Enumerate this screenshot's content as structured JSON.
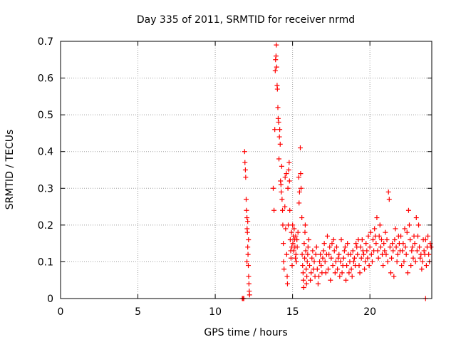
{
  "chart_data": {
    "type": "scatter",
    "title": "Day 335 of 2011, SRMTID for receiver nrmd",
    "xlabel": "GPS time / hours",
    "ylabel": "SRMTID / TECUs",
    "xlim": [
      0,
      24
    ],
    "ylim": [
      0,
      0.7
    ],
    "xticks": [
      "0",
      "5",
      "10",
      "15",
      "20"
    ],
    "yticks": [
      "0",
      "0.1",
      "0.2",
      "0.3",
      "0.4",
      "0.5",
      "0.6",
      "0.7"
    ],
    "grid": true,
    "marker": "plus",
    "series": [
      {
        "color": "#ff0000",
        "points": [
          [
            11.75,
            0.0
          ],
          [
            11.8,
            0.0
          ],
          [
            11.85,
            0.0
          ],
          [
            11.9,
            0.4
          ],
          [
            11.92,
            0.37
          ],
          [
            11.95,
            0.35
          ],
          [
            11.97,
            0.33
          ],
          [
            12.0,
            0.27
          ],
          [
            12.02,
            0.24
          ],
          [
            12.05,
            0.22
          ],
          [
            12.06,
            0.19
          ],
          [
            12.08,
            0.18
          ],
          [
            12.1,
            0.14
          ],
          [
            12.12,
            0.12
          ],
          [
            12.14,
            0.09
          ],
          [
            12.16,
            0.06
          ],
          [
            12.18,
            0.04
          ],
          [
            12.2,
            0.02
          ],
          [
            12.22,
            0.01
          ],
          [
            12.1,
            0.21
          ],
          [
            12.15,
            0.16
          ],
          [
            12.05,
            0.1
          ],
          [
            13.75,
            0.3
          ],
          [
            13.8,
            0.24
          ],
          [
            13.85,
            0.46
          ],
          [
            13.88,
            0.62
          ],
          [
            13.9,
            0.65
          ],
          [
            13.93,
            0.66
          ],
          [
            13.95,
            0.69
          ],
          [
            13.97,
            0.63
          ],
          [
            14.0,
            0.58
          ],
          [
            14.02,
            0.57
          ],
          [
            14.05,
            0.52
          ],
          [
            14.07,
            0.49
          ],
          [
            14.1,
            0.48
          ],
          [
            14.12,
            0.38
          ],
          [
            14.15,
            0.44
          ],
          [
            14.17,
            0.46
          ],
          [
            14.2,
            0.42
          ],
          [
            14.22,
            0.32
          ],
          [
            14.25,
            0.31
          ],
          [
            14.27,
            0.29
          ],
          [
            14.3,
            0.36
          ],
          [
            14.32,
            0.27
          ],
          [
            14.35,
            0.24
          ],
          [
            14.37,
            0.2
          ],
          [
            14.4,
            0.15
          ],
          [
            14.42,
            0.1
          ],
          [
            14.45,
            0.08
          ],
          [
            14.5,
            0.25
          ],
          [
            14.52,
            0.33
          ],
          [
            14.55,
            0.19
          ],
          [
            14.6,
            0.34
          ],
          [
            14.62,
            0.12
          ],
          [
            14.65,
            0.06
          ],
          [
            14.67,
            0.04
          ],
          [
            14.7,
            0.3
          ],
          [
            14.72,
            0.2
          ],
          [
            14.75,
            0.35
          ],
          [
            14.78,
            0.37
          ],
          [
            14.8,
            0.32
          ],
          [
            14.82,
            0.24
          ],
          [
            14.85,
            0.16
          ],
          [
            14.88,
            0.13
          ],
          [
            14.9,
            0.11
          ],
          [
            14.93,
            0.18
          ],
          [
            14.95,
            0.14
          ],
          [
            14.97,
            0.09
          ],
          [
            15.0,
            0.2
          ],
          [
            15.02,
            0.15
          ],
          [
            15.05,
            0.17
          ],
          [
            15.08,
            0.13
          ],
          [
            15.1,
            0.19
          ],
          [
            15.12,
            0.16
          ],
          [
            15.15,
            0.14
          ],
          [
            15.18,
            0.11
          ],
          [
            15.2,
            0.17
          ],
          [
            15.22,
            0.12
          ],
          [
            15.25,
            0.1
          ],
          [
            15.28,
            0.16
          ],
          [
            15.3,
            0.14
          ],
          [
            15.35,
            0.18
          ],
          [
            15.4,
            0.33
          ],
          [
            15.42,
            0.26
          ],
          [
            15.45,
            0.29
          ],
          [
            15.5,
            0.41
          ],
          [
            15.52,
            0.34
          ],
          [
            15.55,
            0.3
          ],
          [
            15.6,
            0.22
          ],
          [
            15.62,
            0.12
          ],
          [
            15.65,
            0.09
          ],
          [
            15.68,
            0.07
          ],
          [
            15.7,
            0.05
          ],
          [
            15.72,
            0.03
          ],
          [
            15.75,
            0.15
          ],
          [
            15.78,
            0.11
          ],
          [
            15.8,
            0.18
          ],
          [
            15.82,
            0.2
          ],
          [
            15.85,
            0.13
          ],
          [
            15.88,
            0.08
          ],
          [
            15.9,
            0.04
          ],
          [
            15.92,
            0.06
          ],
          [
            15.95,
            0.1
          ],
          [
            15.98,
            0.12
          ],
          [
            16.0,
            0.14
          ],
          [
            16.05,
            0.16
          ],
          [
            16.1,
            0.09
          ],
          [
            16.15,
            0.05
          ],
          [
            16.2,
            0.07
          ],
          [
            16.25,
            0.11
          ],
          [
            16.3,
            0.13
          ],
          [
            16.35,
            0.08
          ],
          [
            16.4,
            0.1
          ],
          [
            16.45,
            0.06
          ],
          [
            16.5,
            0.12
          ],
          [
            16.55,
            0.14
          ],
          [
            16.6,
            0.08
          ],
          [
            16.65,
            0.04
          ],
          [
            16.7,
            0.06
          ],
          [
            16.75,
            0.1
          ],
          [
            16.8,
            0.12
          ],
          [
            16.85,
            0.09
          ],
          [
            16.9,
            0.07
          ],
          [
            16.95,
            0.11
          ],
          [
            17.0,
            0.13
          ],
          [
            17.1,
            0.1
          ],
          [
            17.2,
            0.12
          ],
          [
            17.3,
            0.08
          ],
          [
            17.4,
            0.14
          ],
          [
            17.5,
            0.11
          ],
          [
            17.6,
            0.09
          ],
          [
            17.7,
            0.13
          ],
          [
            17.8,
            0.1
          ],
          [
            17.9,
            0.08
          ],
          [
            18.0,
            0.12
          ],
          [
            18.1,
            0.1
          ],
          [
            18.2,
            0.07
          ],
          [
            18.3,
            0.11
          ],
          [
            18.4,
            0.14
          ],
          [
            18.5,
            0.09
          ],
          [
            18.6,
            0.12
          ],
          [
            18.7,
            0.1
          ],
          [
            18.8,
            0.08
          ],
          [
            18.9,
            0.13
          ],
          [
            19.0,
            0.11
          ],
          [
            19.1,
            0.15
          ],
          [
            19.2,
            0.12
          ],
          [
            19.3,
            0.09
          ],
          [
            19.4,
            0.14
          ],
          [
            19.5,
            0.16
          ],
          [
            19.6,
            0.12
          ],
          [
            19.7,
            0.1
          ],
          [
            19.8,
            0.13
          ],
          [
            19.9,
            0.17
          ],
          [
            20.0,
            0.14
          ],
          [
            20.1,
            0.12
          ],
          [
            20.2,
            0.16
          ],
          [
            20.3,
            0.19
          ],
          [
            20.4,
            0.15
          ],
          [
            20.5,
            0.13
          ],
          [
            20.6,
            0.17
          ],
          [
            20.7,
            0.14
          ],
          [
            20.8,
            0.12
          ],
          [
            20.9,
            0.15
          ],
          [
            21.0,
            0.18
          ],
          [
            21.1,
            0.16
          ],
          [
            21.2,
            0.29
          ],
          [
            21.25,
            0.27
          ],
          [
            21.3,
            0.14
          ],
          [
            21.4,
            0.11
          ],
          [
            21.5,
            0.13
          ],
          [
            21.6,
            0.16
          ],
          [
            21.7,
            0.14
          ],
          [
            21.8,
            0.12
          ],
          [
            21.9,
            0.15
          ],
          [
            22.0,
            0.17
          ],
          [
            22.1,
            0.13
          ],
          [
            22.2,
            0.1
          ],
          [
            22.3,
            0.14
          ],
          [
            22.4,
            0.18
          ],
          [
            22.5,
            0.24
          ],
          [
            22.6,
            0.16
          ],
          [
            22.7,
            0.13
          ],
          [
            22.8,
            0.11
          ],
          [
            22.9,
            0.15
          ],
          [
            23.0,
            0.22
          ],
          [
            23.1,
            0.17
          ],
          [
            23.2,
            0.14
          ],
          [
            23.3,
            0.12
          ],
          [
            23.4,
            0.1
          ],
          [
            23.5,
            0.13
          ],
          [
            23.6,
            0.16
          ],
          [
            23.7,
            0.14
          ],
          [
            23.8,
            0.12
          ],
          [
            23.9,
            0.15
          ],
          [
            23.6,
            0.0
          ],
          [
            17.05,
            0.15
          ],
          [
            17.15,
            0.07
          ],
          [
            17.25,
            0.17
          ],
          [
            17.35,
            0.12
          ],
          [
            17.45,
            0.05
          ],
          [
            17.55,
            0.15
          ],
          [
            17.65,
            0.16
          ],
          [
            17.75,
            0.07
          ],
          [
            17.85,
            0.14
          ],
          [
            17.95,
            0.11
          ],
          [
            18.05,
            0.06
          ],
          [
            18.15,
            0.16
          ],
          [
            18.25,
            0.09
          ],
          [
            18.35,
            0.13
          ],
          [
            18.45,
            0.05
          ],
          [
            18.55,
            0.15
          ],
          [
            18.65,
            0.07
          ],
          [
            18.75,
            0.12
          ],
          [
            18.85,
            0.06
          ],
          [
            18.95,
            0.1
          ],
          [
            19.05,
            0.09
          ],
          [
            19.15,
            0.14
          ],
          [
            19.25,
            0.16
          ],
          [
            19.35,
            0.07
          ],
          [
            19.45,
            0.11
          ],
          [
            19.55,
            0.13
          ],
          [
            19.65,
            0.08
          ],
          [
            19.75,
            0.15
          ],
          [
            19.85,
            0.11
          ],
          [
            19.95,
            0.09
          ],
          [
            20.05,
            0.18
          ],
          [
            20.15,
            0.1
          ],
          [
            20.25,
            0.13
          ],
          [
            20.35,
            0.17
          ],
          [
            20.45,
            0.22
          ],
          [
            20.55,
            0.11
          ],
          [
            20.65,
            0.2
          ],
          [
            20.75,
            0.16
          ],
          [
            20.85,
            0.09
          ],
          [
            20.95,
            0.13
          ],
          [
            21.05,
            0.12
          ],
          [
            21.15,
            0.1
          ],
          [
            21.35,
            0.07
          ],
          [
            21.45,
            0.15
          ],
          [
            21.55,
            0.06
          ],
          [
            21.65,
            0.19
          ],
          [
            21.75,
            0.1
          ],
          [
            21.85,
            0.17
          ],
          [
            21.95,
            0.13
          ],
          [
            22.05,
            0.09
          ],
          [
            22.15,
            0.15
          ],
          [
            22.25,
            0.19
          ],
          [
            22.35,
            0.12
          ],
          [
            22.45,
            0.07
          ],
          [
            22.55,
            0.2
          ],
          [
            22.65,
            0.09
          ],
          [
            22.75,
            0.14
          ],
          [
            22.85,
            0.17
          ],
          [
            22.95,
            0.1
          ],
          [
            23.05,
            0.13
          ],
          [
            23.15,
            0.2
          ],
          [
            23.25,
            0.11
          ],
          [
            23.35,
            0.08
          ],
          [
            23.45,
            0.16
          ],
          [
            23.55,
            0.12
          ],
          [
            23.65,
            0.09
          ],
          [
            23.75,
            0.17
          ],
          [
            23.85,
            0.1
          ],
          [
            23.95,
            0.14
          ]
        ]
      }
    ]
  }
}
